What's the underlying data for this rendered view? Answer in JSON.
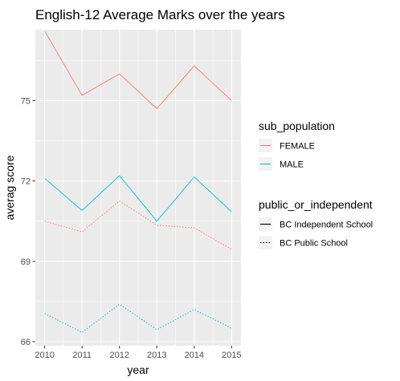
{
  "chart_data": {
    "type": "line",
    "title": "English-12 Average Marks over the years",
    "xlabel": "year",
    "ylabel": "averag score",
    "x": [
      2010,
      2011,
      2012,
      2013,
      2014,
      2015
    ],
    "x_ticks": [
      "2010",
      "2011",
      "2012",
      "2013",
      "2014",
      "2015"
    ],
    "y_ticks": [
      66,
      69,
      72,
      75
    ],
    "y_tick_labels": [
      "66",
      "69",
      "72",
      "75"
    ],
    "xlim": [
      2009.75,
      2015.25
    ],
    "ylim": [
      65.85,
      77.65
    ],
    "grid": true,
    "legend_position": "right",
    "legends": [
      {
        "title": "sub_population",
        "kind": "color",
        "entries": [
          {
            "label": "FEMALE",
            "color": "#F8766D"
          },
          {
            "label": "MALE",
            "color": "#00BFC4"
          }
        ]
      },
      {
        "title": "public_or_independent",
        "kind": "linetype",
        "entries": [
          {
            "label": "BC Independent School",
            "linetype": "solid"
          },
          {
            "label": "BC Public School",
            "linetype": "dotted"
          }
        ]
      }
    ],
    "series": [
      {
        "sub_population": "FEMALE",
        "public_or_independent": "BC Independent School",
        "color": "#F8766D",
        "linetype": "solid",
        "values": [
          77.6,
          75.2,
          76.0,
          74.7,
          76.3,
          75.0
        ]
      },
      {
        "sub_population": "MALE",
        "public_or_independent": "BC Independent School",
        "color": "#00BFC4",
        "linetype": "solid",
        "values": [
          72.1,
          70.9,
          72.2,
          70.5,
          72.15,
          70.85
        ]
      },
      {
        "sub_population": "FEMALE",
        "public_or_independent": "BC Public School",
        "color": "#F8766D",
        "linetype": "dotted",
        "values": [
          70.5,
          70.1,
          71.25,
          70.35,
          70.25,
          69.45
        ]
      },
      {
        "sub_population": "MALE",
        "public_or_independent": "BC Public School",
        "color": "#00BFC4",
        "linetype": "dotted",
        "values": [
          67.05,
          66.35,
          67.4,
          66.45,
          67.2,
          66.5
        ]
      }
    ]
  }
}
